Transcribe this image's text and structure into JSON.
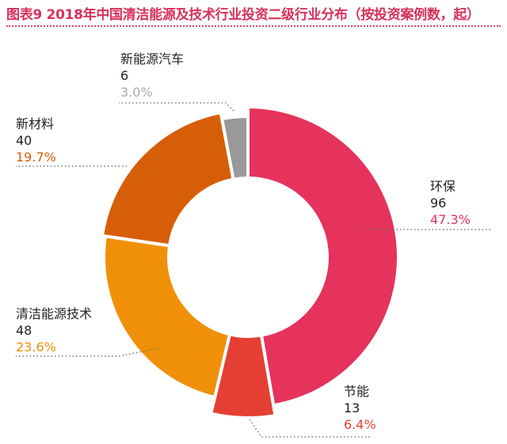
{
  "title": "图表9 2018年中国清洁能源及技术行业投资二级行业分布（按投资案例数，起）",
  "chart_data": {
    "type": "pie",
    "donut": true,
    "title": "图表9 2018年中国清洁能源及技术行业投资二级行业分布（按投资案例数，起）",
    "start": "12 o'clock, clockwise",
    "slices": [
      {
        "name": "环保",
        "value": 96,
        "percent": "47.3%",
        "color": "#e5335c"
      },
      {
        "name": "节能",
        "value": 13,
        "percent": "6.4%",
        "color": "#e43f32"
      },
      {
        "name": "清洁能源技术",
        "value": 48,
        "percent": "23.6%",
        "color": "#f09008"
      },
      {
        "name": "新材料",
        "value": 40,
        "percent": "19.7%",
        "color": "#d75e08"
      },
      {
        "name": "新能源汽车",
        "value": 6,
        "percent": "3.0%",
        "color": "#999999"
      }
    ],
    "label_colors": {
      "新能源汽车_percent": "#aaaaaa"
    }
  }
}
